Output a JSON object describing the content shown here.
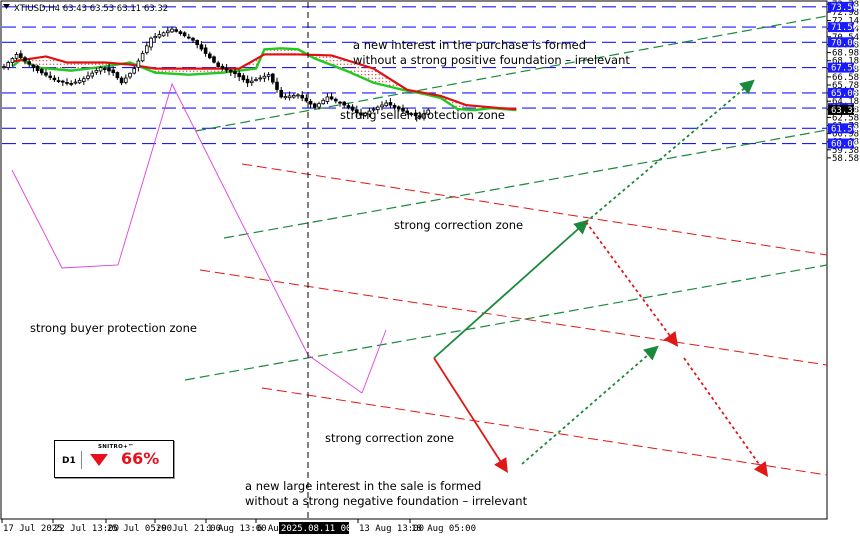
{
  "symbol_header": "XTIUSD,H4  63.43 63.53 63.11 63.32",
  "colors": {
    "candle": "#000000",
    "level_line": "#1a1aff",
    "level_label_bg": "#1a1aff",
    "current_label_bg": "#000000",
    "cloud_fast": "#22c922",
    "cloud_slow": "#e01010",
    "cloud_dots": "#e01010",
    "trend_green": "#1a8a3a",
    "trend_red": "#e01818",
    "magenta": "#e040e0"
  },
  "chart_data": {
    "type": "candlestick",
    "symbol": "XTIUSD",
    "timeframe": "H4",
    "ohlc_last": {
      "open": 63.43,
      "high": 63.53,
      "low": 63.11,
      "close": 63.32
    },
    "y_ticks": [
      73.78,
      72.98,
      72.14,
      71.34,
      70.54,
      69.78,
      68.98,
      68.18,
      67.38,
      66.58,
      65.78,
      64.98,
      64.18,
      63.38,
      62.58,
      61.78,
      60.98,
      60.18,
      59.38,
      58.58
    ],
    "x_ticks": [
      "17 Jul 2025",
      "22 Jul 13:00",
      "25 Jul 05:00",
      "29 Jul 21:00",
      "1 Aug 13:00",
      "6 Aug 05:00",
      "2025.08.11 00:00",
      "13 Aug 13:00",
      "18 Aug 05:00"
    ],
    "crosshair_time": "2025.08.11 00:00",
    "current_price": 63.32,
    "levels": [
      73.5,
      71.5,
      70.0,
      67.5,
      65.0,
      63.5,
      61.5,
      60.0
    ],
    "annotations": [
      "a new interest in the purchase is formed",
      "without a strong positive foundation – irrelevant",
      "strong seller protection zone",
      "strong correction zone",
      "strong buyer protection zone",
      "strong correction zone",
      "a new large interest in the sale is formed",
      "without a strong negative foundation – irrelevant"
    ]
  },
  "badge": {
    "timeframe": "D1",
    "brand": "SNITRO+™",
    "percent": "66%"
  }
}
